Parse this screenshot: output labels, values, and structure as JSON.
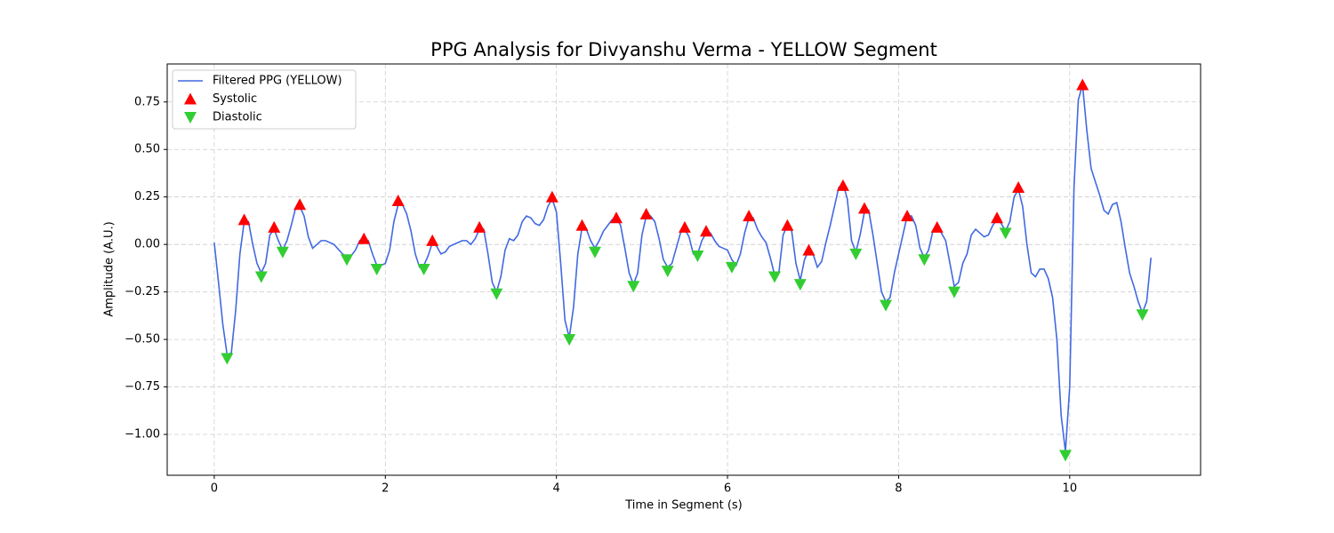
{
  "chart_data": {
    "type": "line",
    "title": "PPG Analysis for Divyanshu Verma - YELLOW Segment",
    "x_label": "Time in Segment (s)",
    "y_label": "Amplitude (A.U.)",
    "xlim": [
      -0.55,
      11.53
    ],
    "ylim": [
      -1.215,
      0.95
    ],
    "xticks": [
      0,
      2,
      4,
      6,
      8,
      10
    ],
    "yticks": [
      {
        "value": -1,
        "label": "−1.00"
      },
      {
        "value": -0.75,
        "label": "−0.75"
      },
      {
        "value": -0.5,
        "label": "−0.50"
      },
      {
        "value": -0.25,
        "label": "−0.25"
      },
      {
        "value": 0,
        "label": "0.00"
      },
      0.25,
      {
        "value": 0.5,
        "label": "0.50"
      },
      0.75
    ],
    "grid": true,
    "legend": "upper left",
    "series": [
      {
        "name": "Filtered PPG (YELLOW)",
        "color": "#4169e1",
        "marker": "line",
        "x": [
          0,
          0.05,
          0.1,
          0.15,
          0.2,
          0.25,
          0.3,
          0.35,
          0.4,
          0.45,
          0.5,
          0.55,
          0.6,
          0.65,
          0.7,
          0.75,
          0.8,
          0.85,
          0.9,
          0.95,
          1,
          1.05,
          1.1,
          1.15,
          1.2,
          1.25,
          1.3,
          1.4,
          1.5,
          1.55,
          1.6,
          1.65,
          1.7,
          1.75,
          1.8,
          1.85,
          1.9,
          1.95,
          2,
          2.05,
          2.1,
          2.15,
          2.2,
          2.25,
          2.3,
          2.35,
          2.4,
          2.45,
          2.5,
          2.55,
          2.6,
          2.65,
          2.7,
          2.75,
          2.85,
          2.9,
          2.95,
          3,
          3.05,
          3.1,
          3.15,
          3.2,
          3.25,
          3.3,
          3.35,
          3.4,
          3.45,
          3.5,
          3.55,
          3.6,
          3.65,
          3.7,
          3.75,
          3.8,
          3.85,
          3.9,
          3.95,
          4,
          4.05,
          4.1,
          4.15,
          4.2,
          4.25,
          4.3,
          4.35,
          4.4,
          4.45,
          4.5,
          4.55,
          4.6,
          4.65,
          4.7,
          4.75,
          4.8,
          4.85,
          4.9,
          4.95,
          5,
          5.05,
          5.1,
          5.15,
          5.2,
          5.25,
          5.3,
          5.35,
          5.4,
          5.45,
          5.5,
          5.55,
          5.6,
          5.65,
          5.7,
          5.75,
          5.8,
          5.85,
          5.9,
          5.95,
          6,
          6.05,
          6.1,
          6.15,
          6.2,
          6.25,
          6.3,
          6.35,
          6.4,
          6.45,
          6.5,
          6.55,
          6.6,
          6.65,
          6.7,
          6.75,
          6.8,
          6.85,
          6.9,
          6.95,
          7,
          7.05,
          7.1,
          7.15,
          7.2,
          7.25,
          7.3,
          7.35,
          7.4,
          7.45,
          7.5,
          7.55,
          7.6,
          7.65,
          7.7,
          7.75,
          7.8,
          7.85,
          7.9,
          7.95,
          8,
          8.05,
          8.1,
          8.15,
          8.2,
          8.25,
          8.3,
          8.35,
          8.4,
          8.45,
          8.5,
          8.55,
          8.6,
          8.65,
          8.7,
          8.75,
          8.8,
          8.85,
          8.9,
          8.95,
          9,
          9.05,
          9.1,
          9.15,
          9.2,
          9.25,
          9.3,
          9.35,
          9.4,
          9.45,
          9.5,
          9.55,
          9.6,
          9.65,
          9.7,
          9.75,
          9.8,
          9.85,
          9.9,
          9.95,
          10,
          10.05,
          10.1,
          10.15,
          10.2,
          10.25,
          10.3,
          10.35,
          10.4,
          10.45,
          10.5,
          10.55,
          10.6,
          10.65,
          10.7,
          10.75,
          10.8,
          10.85,
          10.9,
          10.95
        ],
        "values": [
          0.01,
          -0.2,
          -0.42,
          -0.58,
          -0.57,
          -0.35,
          -0.05,
          0.12,
          0.12,
          0,
          -0.1,
          -0.15,
          -0.1,
          0.05,
          0.08,
          0.02,
          -0.03,
          0.02,
          0.1,
          0.19,
          0.2,
          0.15,
          0.04,
          -0.02,
          0,
          0.02,
          0.02,
          0,
          -0.05,
          -0.07,
          -0.06,
          -0.03,
          0.02,
          0.03,
          0.02,
          -0.05,
          -0.11,
          -0.11,
          -0.1,
          -0.03,
          0.12,
          0.21,
          0.21,
          0.16,
          0.07,
          -0.05,
          -0.12,
          -0.11,
          -0.06,
          0.01,
          -0.01,
          -0.05,
          -0.04,
          -0.01,
          0.01,
          0.02,
          0.02,
          0,
          0.03,
          0.08,
          0.08,
          -0.05,
          -0.2,
          -0.25,
          -0.17,
          -0.03,
          0.03,
          0.02,
          0.05,
          0.12,
          0.15,
          0.14,
          0.11,
          0.1,
          0.13,
          0.2,
          0.24,
          0.17,
          -0.1,
          -0.4,
          -0.49,
          -0.33,
          -0.05,
          0.09,
          0.08,
          0.02,
          -0.02,
          0.02,
          0.07,
          0.1,
          0.13,
          0.14,
          0.1,
          -0.02,
          -0.15,
          -0.21,
          -0.15,
          0.05,
          0.15,
          0.15,
          0.12,
          0.03,
          -0.08,
          -0.12,
          -0.1,
          -0.02,
          0.06,
          0.08,
          0.04,
          -0.05,
          -0.05,
          0.02,
          0.06,
          0.06,
          0.02,
          -0.01,
          -0.02,
          -0.03,
          -0.08,
          -0.11,
          -0.05,
          0.06,
          0.14,
          0.14,
          0.08,
          0.04,
          0.01,
          -0.07,
          -0.16,
          -0.15,
          0.05,
          0.1,
          0.07,
          -0.1,
          -0.19,
          -0.08,
          -0.03,
          -0.05,
          -0.12,
          -0.09,
          0.01,
          0.1,
          0.2,
          0.3,
          0.32,
          0.24,
          0.02,
          -0.04,
          0.05,
          0.17,
          0.18,
          0.05,
          -0.1,
          -0.25,
          -0.3,
          -0.28,
          -0.15,
          -0.05,
          0.05,
          0.15,
          0.15,
          0.1,
          -0.02,
          -0.07,
          -0.03,
          0.07,
          0.09,
          0.06,
          0.02,
          -0.1,
          -0.22,
          -0.2,
          -0.1,
          -0.05,
          0.05,
          0.08,
          0.06,
          0.04,
          0.05,
          0.1,
          0.13,
          0.11,
          0.07,
          0.12,
          0.25,
          0.29,
          0.2,
          0,
          -0.15,
          -0.17,
          -0.13,
          -0.13,
          -0.18,
          -0.28,
          -0.5,
          -0.9,
          -1.09,
          -0.75,
          0.3,
          0.76,
          0.84,
          0.6,
          0.4,
          0.33,
          0.26,
          0.18,
          0.16,
          0.21,
          0.22,
          0.12,
          -0.02,
          -0.15,
          -0.22,
          -0.3,
          -0.36,
          -0.3,
          -0.07
        ]
      },
      {
        "name": "Systolic",
        "color": "#ff0000",
        "marker": "triangle-up",
        "x": [
          0.35,
          0.7,
          1,
          1.75,
          2.15,
          2.55,
          3.1,
          3.95,
          4.3,
          4.7,
          5.05,
          5.5,
          5.75,
          6.25,
          6.7,
          6.95,
          7.35,
          7.6,
          8.1,
          8.45,
          9.15,
          9.4,
          10.15
        ],
        "values": [
          0.13,
          0.09,
          0.21,
          0.03,
          0.23,
          0.02,
          0.09,
          0.25,
          0.1,
          0.14,
          0.16,
          0.09,
          0.07,
          0.15,
          0.1,
          -0.03,
          0.31,
          0.19,
          0.15,
          0.09,
          0.14,
          0.3,
          0.84
        ]
      },
      {
        "name": "Diastolic",
        "color": "#32cd32",
        "marker": "triangle-down",
        "x": [
          0.15,
          0.55,
          0.8,
          1.55,
          1.9,
          2.45,
          3.3,
          4.15,
          4.45,
          4.9,
          5.3,
          5.65,
          6.05,
          6.55,
          6.85,
          7.5,
          7.85,
          8.3,
          8.65,
          9.25,
          9.95,
          10.85
        ],
        "values": [
          -0.6,
          -0.17,
          -0.04,
          -0.08,
          -0.13,
          -0.13,
          -0.26,
          -0.5,
          -0.04,
          -0.22,
          -0.14,
          -0.06,
          -0.12,
          -0.17,
          -0.21,
          -0.05,
          -0.32,
          -0.08,
          -0.25,
          0.06,
          -1.11,
          -0.37
        ]
      }
    ]
  }
}
